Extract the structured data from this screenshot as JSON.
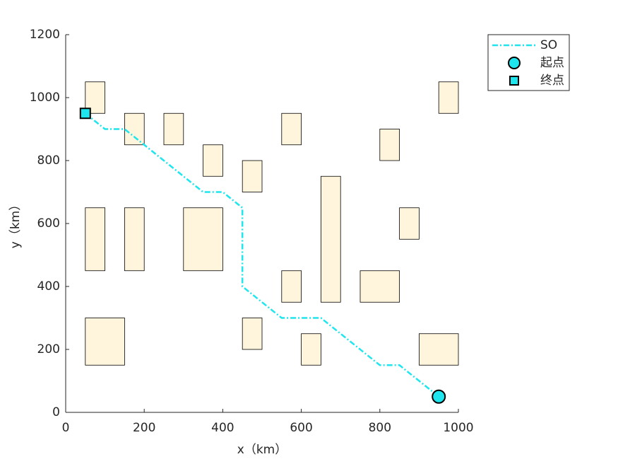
{
  "chart_data": {
    "type": "path",
    "xlabel": "x（km）",
    "ylabel": "y（km）",
    "xlim": [
      0,
      1000
    ],
    "ylim": [
      0,
      1200
    ],
    "xticks": [
      0,
      200,
      400,
      600,
      800,
      1000
    ],
    "yticks": [
      0,
      200,
      400,
      600,
      800,
      1000,
      1200
    ],
    "obstacles": {
      "color": "#fff5dc",
      "rects": [
        {
          "x": [
            50,
            100
          ],
          "y": [
            950,
            1050
          ]
        },
        {
          "x": [
            150,
            200
          ],
          "y": [
            850,
            950
          ]
        },
        {
          "x": [
            250,
            300
          ],
          "y": [
            850,
            950
          ]
        },
        {
          "x": [
            350,
            400
          ],
          "y": [
            750,
            850
          ]
        },
        {
          "x": [
            450,
            500
          ],
          "y": [
            700,
            800
          ]
        },
        {
          "x": [
            550,
            600
          ],
          "y": [
            850,
            950
          ]
        },
        {
          "x": [
            800,
            850
          ],
          "y": [
            800,
            900
          ]
        },
        {
          "x": [
            950,
            1000
          ],
          "y": [
            950,
            1050
          ]
        },
        {
          "x": [
            50,
            100
          ],
          "y": [
            450,
            650
          ]
        },
        {
          "x": [
            150,
            200
          ],
          "y": [
            450,
            650
          ]
        },
        {
          "x": [
            300,
            400
          ],
          "y": [
            450,
            650
          ]
        },
        {
          "x": [
            650,
            700
          ],
          "y": [
            350,
            750
          ]
        },
        {
          "x": [
            850,
            900
          ],
          "y": [
            550,
            650
          ]
        },
        {
          "x": [
            550,
            600
          ],
          "y": [
            350,
            450
          ]
        },
        {
          "x": [
            750,
            850
          ],
          "y": [
            350,
            450
          ]
        },
        {
          "x": [
            50,
            150
          ],
          "y": [
            150,
            300
          ]
        },
        {
          "x": [
            450,
            500
          ],
          "y": [
            200,
            300
          ]
        },
        {
          "x": [
            600,
            650
          ],
          "y": [
            150,
            250
          ]
        },
        {
          "x": [
            900,
            1000
          ],
          "y": [
            150,
            250
          ]
        }
      ]
    },
    "series": [
      {
        "name": "SO",
        "color": "#1ee6ee",
        "x": [
          50,
          100,
          150,
          200,
          350,
          400,
          450,
          450,
          550,
          650,
          800,
          850,
          950
        ],
        "y": [
          950,
          900,
          900,
          850,
          700,
          700,
          650,
          400,
          300,
          300,
          150,
          150,
          50
        ]
      }
    ],
    "start": {
      "name": "起点",
      "x": 950,
      "y": 50,
      "color": "#1ee6ee"
    },
    "end": {
      "name": "终点",
      "x": 50,
      "y": 950,
      "color": "#1ee6ee"
    },
    "legend": "upper right"
  }
}
